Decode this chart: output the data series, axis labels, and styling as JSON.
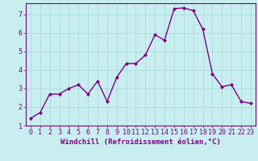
{
  "x": [
    0,
    1,
    2,
    3,
    4,
    5,
    6,
    7,
    8,
    9,
    10,
    11,
    12,
    13,
    14,
    15,
    16,
    17,
    18,
    19,
    20,
    21,
    22,
    23
  ],
  "y": [
    1.4,
    1.7,
    2.7,
    2.7,
    3.0,
    3.2,
    2.7,
    3.4,
    2.3,
    3.6,
    4.35,
    4.35,
    4.8,
    5.9,
    5.6,
    7.3,
    7.35,
    7.2,
    6.2,
    3.8,
    3.1,
    3.2,
    2.3,
    2.2
  ],
  "line_color": "#800080",
  "marker": "D",
  "marker_size": 2.0,
  "line_width": 1.0,
  "bg_color": "#c8eef0",
  "grid_color": "#aadddd",
  "xlabel": "Windchill (Refroidissement éolien,°C)",
  "xlabel_color": "#800080",
  "tick_color": "#800080",
  "xlim": [
    -0.5,
    23.5
  ],
  "ylim": [
    1.0,
    7.6
  ],
  "yticks": [
    1,
    2,
    3,
    4,
    5,
    6,
    7
  ],
  "xticks": [
    0,
    1,
    2,
    3,
    4,
    5,
    6,
    7,
    8,
    9,
    10,
    11,
    12,
    13,
    14,
    15,
    16,
    17,
    18,
    19,
    20,
    21,
    22,
    23
  ],
  "font_size_label": 6.5,
  "font_size_tick": 6.0
}
